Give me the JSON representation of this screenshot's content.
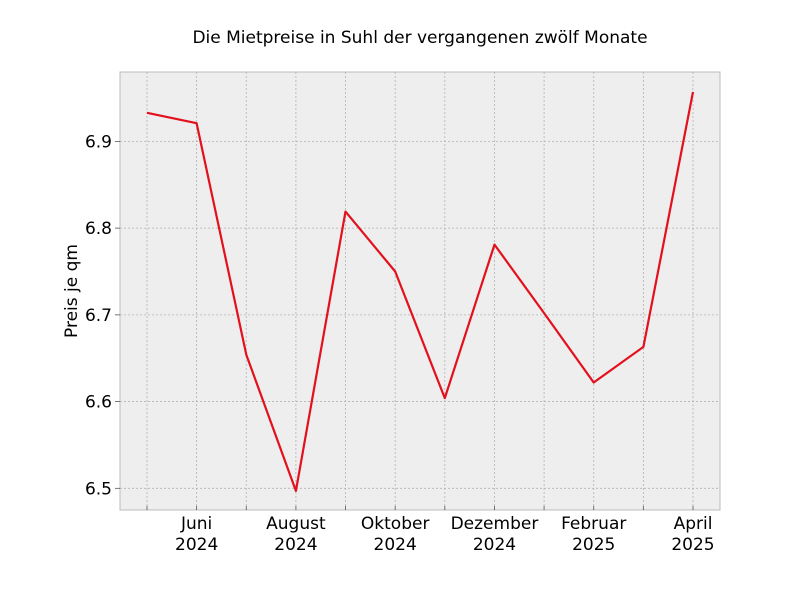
{
  "chart_data": {
    "type": "line",
    "title": "Die Mietpreise in Suhl der vergangenen zwölf Monate",
    "xlabel": "",
    "ylabel": "Preis je qm",
    "x": [
      "2024-05",
      "2024-06",
      "2024-07",
      "2024-08",
      "2024-09",
      "2024-10",
      "2024-11",
      "2024-12",
      "2025-01",
      "2025-02",
      "2025-03",
      "2025-04"
    ],
    "values": [
      6.933,
      6.921,
      6.654,
      6.497,
      6.819,
      6.75,
      6.604,
      6.781,
      6.702,
      6.622,
      6.663,
      6.957
    ],
    "ylim": [
      6.475,
      6.98
    ],
    "yticks": [
      "6.5",
      "6.6",
      "6.7",
      "6.8",
      "6.9"
    ],
    "xtick_labels": [
      {
        "month": "Juni",
        "year": "2024"
      },
      {
        "month": "August",
        "year": "2024"
      },
      {
        "month": "Oktober",
        "year": "2024"
      },
      {
        "month": "Dezember",
        "year": "2024"
      },
      {
        "month": "Februar",
        "year": "2025"
      },
      {
        "month": "April",
        "year": "2025"
      }
    ],
    "line_color": "#e3101d",
    "background_color": "#eeeeee",
    "grid": true
  }
}
